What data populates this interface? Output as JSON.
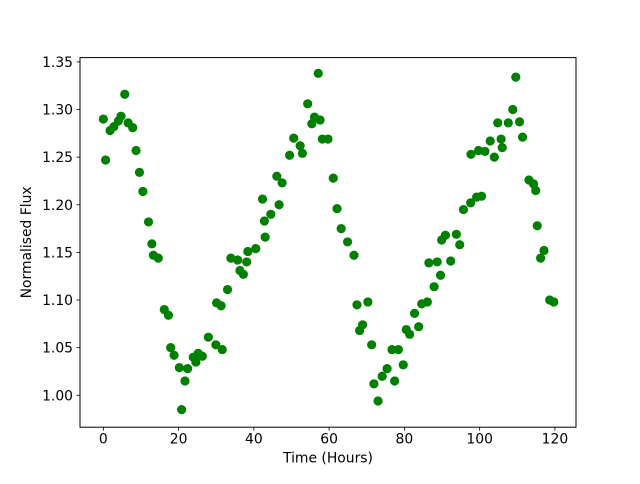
{
  "figure": {
    "background": "#ffffff"
  },
  "chart_data": {
    "type": "scatter",
    "title": "",
    "xlabel": "Time (Hours)",
    "ylabel": "Normalised Flux",
    "legend": null,
    "grid": false,
    "marker_shape": "circle",
    "marker_color": "#008000",
    "xlim": [
      -6.2,
      125.6
    ],
    "ylim": [
      0.9665,
      1.3545
    ],
    "xticks": {
      "values": [
        0,
        20,
        40,
        60,
        80,
        100,
        120
      ],
      "labels": [
        "0",
        "20",
        "40",
        "60",
        "80",
        "100",
        "120"
      ]
    },
    "yticks": {
      "values": [
        1.0,
        1.05,
        1.1,
        1.15,
        1.2,
        1.25,
        1.3,
        1.35
      ],
      "labels": [
        "1.00",
        "1.05",
        "1.10",
        "1.15",
        "1.20",
        "1.25",
        "1.30",
        "1.35"
      ]
    },
    "x": [
      0.0,
      0.6,
      1.8,
      2.8,
      4.0,
      4.7,
      5.7,
      6.6,
      7.8,
      8.7,
      9.6,
      10.5,
      12.0,
      12.9,
      13.3,
      14.6,
      16.2,
      17.3,
      17.9,
      18.8,
      20.2,
      20.8,
      21.7,
      22.4,
      23.9,
      24.6,
      25.2,
      26.3,
      27.9,
      29.9,
      30.1,
      31.3,
      31.6,
      33.0,
      33.9,
      35.7,
      36.3,
      37.2,
      38.1,
      38.4,
      40.5,
      42.3,
      42.8,
      43.0,
      44.5,
      46.1,
      46.7,
      47.5,
      49.5,
      50.6,
      52.3,
      52.9,
      54.3,
      55.4,
      56.1,
      57.1,
      57.6,
      58.2,
      59.7,
      61.1,
      62.1,
      63.2,
      64.9,
      66.6,
      67.4,
      68.1,
      68.9,
      70.3,
      71.3,
      71.9,
      73.0,
      74.1,
      75.4,
      76.7,
      77.4,
      78.4,
      79.7,
      80.5,
      81.4,
      82.7,
      83.8,
      84.6,
      86.1,
      86.5,
      87.9,
      88.7,
      89.6,
      89.9,
      90.9,
      92.3,
      93.8,
      94.7,
      95.7,
      97.6,
      97.7,
      99.2,
      99.7,
      100.5,
      101.4,
      102.8,
      103.9,
      104.8,
      105.7,
      106.0,
      107.6,
      108.8,
      109.6,
      110.6,
      111.4,
      113.1,
      114.3,
      114.9,
      115.3,
      116.2,
      117.1,
      118.6,
      119.7
    ],
    "y": [
      1.29,
      1.247,
      1.278,
      1.282,
      1.288,
      1.293,
      1.316,
      1.286,
      1.281,
      1.257,
      1.234,
      1.214,
      1.182,
      1.159,
      1.147,
      1.144,
      1.09,
      1.084,
      1.05,
      1.042,
      1.029,
      0.985,
      1.015,
      1.028,
      1.04,
      1.035,
      1.044,
      1.041,
      1.061,
      1.053,
      1.097,
      1.094,
      1.048,
      1.111,
      1.144,
      1.142,
      1.131,
      1.127,
      1.14,
      1.151,
      1.154,
      1.206,
      1.183,
      1.166,
      1.19,
      1.23,
      1.2,
      1.223,
      1.252,
      1.27,
      1.262,
      1.254,
      1.306,
      1.285,
      1.292,
      1.338,
      1.289,
      1.269,
      1.269,
      1.228,
      1.196,
      1.175,
      1.161,
      1.147,
      1.095,
      1.068,
      1.074,
      1.098,
      1.053,
      1.012,
      0.994,
      1.02,
      1.028,
      1.048,
      1.015,
      1.048,
      1.032,
      1.069,
      1.064,
      1.086,
      1.072,
      1.096,
      1.098,
      1.139,
      1.114,
      1.14,
      1.126,
      1.163,
      1.168,
      1.141,
      1.169,
      1.158,
      1.195,
      1.202,
      1.253,
      1.208,
      1.257,
      1.209,
      1.256,
      1.267,
      1.25,
      1.286,
      1.269,
      1.26,
      1.286,
      1.3,
      1.334,
      1.287,
      1.271,
      1.226,
      1.222,
      1.215,
      1.178,
      1.144,
      1.152,
      1.1,
      1.098
    ]
  }
}
